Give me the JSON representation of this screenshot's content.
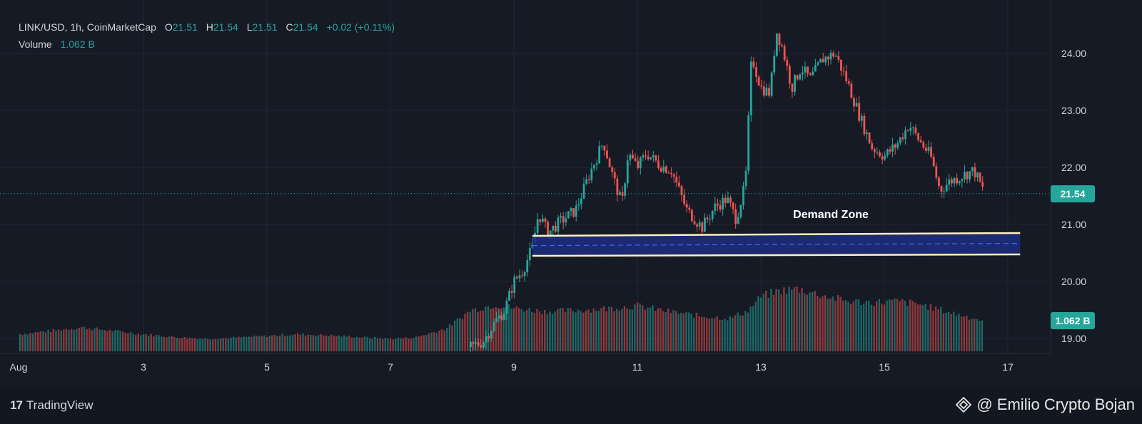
{
  "header": {
    "symbol": "LINK/USD, 1h, CoinMarketCap",
    "o_label": "O",
    "o_value": "21.51",
    "h_label": "H",
    "h_value": "21.54",
    "l_label": "L",
    "l_value": "21.51",
    "c_label": "C",
    "c_value": "21.54",
    "change": "+0.02 (+0.11%)",
    "volume_label": "Volume",
    "volume_value": "1.062 B"
  },
  "price_axis": {
    "ticks": [
      "24.00",
      "23.00",
      "22.00",
      "21.00",
      "20.00",
      "19.00"
    ],
    "current_price_tag": "21.54",
    "volume_tag": "1.062 B"
  },
  "time_axis": {
    "ticks": [
      "Aug",
      "3",
      "5",
      "7",
      "9",
      "11",
      "13",
      "15",
      "17"
    ]
  },
  "annotation": {
    "demand_zone_label": "Demand Zone"
  },
  "footer": {
    "brand": "TradingView",
    "credit": "@ Emilio Crypto Bojan"
  },
  "colors": {
    "up": "#26a69a",
    "down": "#ef5350",
    "background": "#161a25",
    "zone_fill": "#1e2f80",
    "zone_border": "#fff3c4"
  },
  "chart_data": {
    "type": "candlestick",
    "symbol": "LINK/USD",
    "interval": "1h",
    "ylim": [
      18.75,
      24.8
    ],
    "x_range_days": [
      1,
      17.4
    ],
    "last_price": 21.54,
    "last_volume": "1.062 B",
    "demand_zone": {
      "x_start_day": 9.3,
      "x_end_day": 17.2,
      "low": 20.45,
      "high": 20.8,
      "mid": 20.63,
      "label": "Demand Zone"
    },
    "price_path": [
      [
        8.3,
        18.85
      ],
      [
        8.5,
        18.95
      ],
      [
        8.7,
        19.3
      ],
      [
        8.85,
        19.5
      ],
      [
        9.0,
        20.0
      ],
      [
        9.15,
        20.2
      ],
      [
        9.3,
        20.6
      ],
      [
        9.4,
        21.2
      ],
      [
        9.55,
        20.85
      ],
      [
        9.75,
        21.05
      ],
      [
        10.0,
        21.25
      ],
      [
        10.25,
        21.95
      ],
      [
        10.45,
        22.45
      ],
      [
        10.6,
        21.85
      ],
      [
        10.75,
        21.35
      ],
      [
        10.85,
        22.25
      ],
      [
        11.0,
        22.0
      ],
      [
        11.15,
        22.25
      ],
      [
        11.35,
        22.05
      ],
      [
        11.55,
        21.95
      ],
      [
        11.8,
        21.25
      ],
      [
        12.05,
        20.95
      ],
      [
        12.25,
        21.3
      ],
      [
        12.45,
        21.45
      ],
      [
        12.6,
        21.1
      ],
      [
        12.75,
        21.7
      ],
      [
        12.85,
        23.95
      ],
      [
        13.0,
        23.4
      ],
      [
        13.15,
        23.3
      ],
      [
        13.25,
        24.4
      ],
      [
        13.35,
        24.1
      ],
      [
        13.5,
        23.4
      ],
      [
        13.65,
        23.75
      ],
      [
        13.8,
        23.55
      ],
      [
        14.0,
        23.9
      ],
      [
        14.2,
        24.0
      ],
      [
        14.4,
        23.5
      ],
      [
        14.6,
        22.9
      ],
      [
        14.8,
        22.35
      ],
      [
        15.0,
        22.2
      ],
      [
        15.2,
        22.4
      ],
      [
        15.4,
        22.75
      ],
      [
        15.55,
        22.5
      ],
      [
        15.75,
        22.2
      ],
      [
        15.9,
        21.6
      ],
      [
        16.05,
        21.75
      ],
      [
        16.25,
        21.85
      ],
      [
        16.45,
        21.95
      ],
      [
        16.6,
        21.6
      ]
    ],
    "volume_profile": [
      [
        1.0,
        0.3
      ],
      [
        1.5,
        0.36
      ],
      [
        2.0,
        0.42
      ],
      [
        2.5,
        0.36
      ],
      [
        3.0,
        0.3
      ],
      [
        3.5,
        0.25
      ],
      [
        4.0,
        0.22
      ],
      [
        4.5,
        0.24
      ],
      [
        5.0,
        0.27
      ],
      [
        5.5,
        0.3
      ],
      [
        6.0,
        0.28
      ],
      [
        6.5,
        0.25
      ],
      [
        7.0,
        0.22
      ],
      [
        7.4,
        0.24
      ],
      [
        7.9,
        0.4
      ],
      [
        8.3,
        0.72
      ],
      [
        8.7,
        0.82
      ],
      [
        9.0,
        0.76
      ],
      [
        9.5,
        0.7
      ],
      [
        10.0,
        0.72
      ],
      [
        10.5,
        0.75
      ],
      [
        11.0,
        0.8
      ],
      [
        11.5,
        0.7
      ],
      [
        12.0,
        0.62
      ],
      [
        12.5,
        0.58
      ],
      [
        12.8,
        0.72
      ],
      [
        13.0,
        0.96
      ],
      [
        13.3,
        1.06
      ],
      [
        13.6,
        1.1
      ],
      [
        14.0,
        0.98
      ],
      [
        14.4,
        0.88
      ],
      [
        14.8,
        0.86
      ],
      [
        15.2,
        0.88
      ],
      [
        15.6,
        0.82
      ],
      [
        16.0,
        0.7
      ],
      [
        16.6,
        0.54
      ]
    ]
  }
}
